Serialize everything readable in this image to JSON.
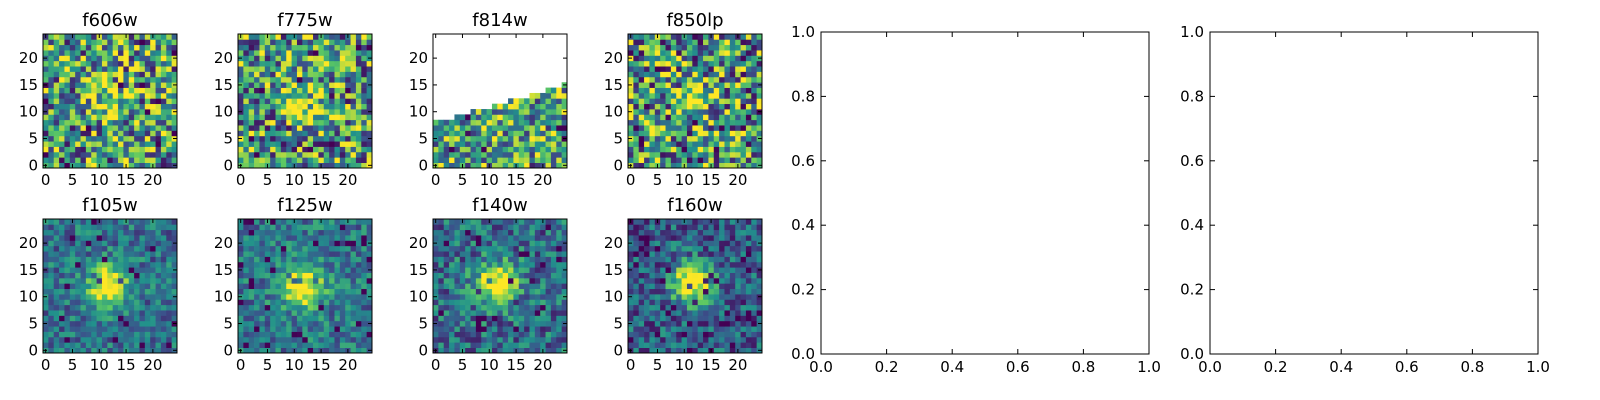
{
  "chart_data": [
    {
      "type": "heatmap",
      "title": "f606w",
      "xlim": [
        -0.5,
        24.5
      ],
      "ylim": [
        -0.5,
        24.5
      ],
      "xticks": [
        0,
        5,
        10,
        15,
        20
      ],
      "yticks": [
        0,
        5,
        10,
        15,
        20
      ],
      "source_peak": [
        12,
        12
      ],
      "peak_strength": 0.35,
      "noise": 0.5,
      "background": 0.55,
      "coverage": "full"
    },
    {
      "type": "heatmap",
      "title": "f775w",
      "xlim": [
        -0.5,
        24.5
      ],
      "ylim": [
        -0.5,
        24.5
      ],
      "xticks": [
        0,
        5,
        10,
        15,
        20
      ],
      "yticks": [
        0,
        5,
        10,
        15,
        20
      ],
      "source_peak": [
        12,
        12
      ],
      "peak_strength": 0.35,
      "noise": 0.5,
      "background": 0.55,
      "coverage": "full"
    },
    {
      "type": "heatmap",
      "title": "f814w",
      "xlim": [
        -0.5,
        24.5
      ],
      "ylim": [
        -0.5,
        24.5
      ],
      "xticks": [
        0,
        5,
        10,
        15,
        20
      ],
      "yticks": [
        0,
        5,
        10,
        15,
        20
      ],
      "source_peak": [
        12,
        12
      ],
      "peak_strength": 0.1,
      "noise": 0.45,
      "background": 0.6,
      "coverage": "partial",
      "coverage_edge": [
        8,
        15
      ]
    },
    {
      "type": "heatmap",
      "title": "f850lp",
      "xlim": [
        -0.5,
        24.5
      ],
      "ylim": [
        -0.5,
        24.5
      ],
      "xticks": [
        0,
        5,
        10,
        15,
        20
      ],
      "yticks": [
        0,
        5,
        10,
        15,
        20
      ],
      "source_peak": [
        12,
        12
      ],
      "peak_strength": 0.3,
      "noise": 0.55,
      "background": 0.55,
      "coverage": "full"
    },
    {
      "type": "heatmap",
      "title": "f105w",
      "xlim": [
        -0.5,
        24.5
      ],
      "ylim": [
        -0.5,
        24.5
      ],
      "xticks": [
        0,
        5,
        10,
        15,
        20
      ],
      "yticks": [
        0,
        5,
        10,
        15,
        20
      ],
      "source_peak": [
        11.5,
        12
      ],
      "peak_strength": 0.75,
      "noise": 0.22,
      "background": 0.38,
      "coverage": "full"
    },
    {
      "type": "heatmap",
      "title": "f125w",
      "xlim": [
        -0.5,
        24.5
      ],
      "ylim": [
        -0.5,
        24.5
      ],
      "xticks": [
        0,
        5,
        10,
        15,
        20
      ],
      "yticks": [
        0,
        5,
        10,
        15,
        20
      ],
      "source_peak": [
        11.5,
        12
      ],
      "peak_strength": 0.75,
      "noise": 0.22,
      "background": 0.4,
      "coverage": "full"
    },
    {
      "type": "heatmap",
      "title": "f140w",
      "xlim": [
        -0.5,
        24.5
      ],
      "ylim": [
        -0.5,
        24.5
      ],
      "xticks": [
        0,
        5,
        10,
        15,
        20
      ],
      "yticks": [
        0,
        5,
        10,
        15,
        20
      ],
      "source_peak": [
        11.5,
        12.5
      ],
      "peak_strength": 0.75,
      "noise": 0.26,
      "background": 0.36,
      "coverage": "full"
    },
    {
      "type": "heatmap",
      "title": "f160w",
      "xlim": [
        -0.5,
        24.5
      ],
      "ylim": [
        -0.5,
        24.5
      ],
      "xticks": [
        0,
        5,
        10,
        15,
        20
      ],
      "yticks": [
        0,
        5,
        10,
        15,
        20
      ],
      "source_peak": [
        11.5,
        12.5
      ],
      "peak_strength": 0.8,
      "noise": 0.25,
      "background": 0.3,
      "coverage": "full"
    },
    {
      "type": "line",
      "title": "",
      "xlim": [
        0.0,
        1.0
      ],
      "ylim": [
        0.0,
        1.0
      ],
      "xticks": [
        "0.0",
        "0.2",
        "0.4",
        "0.6",
        "0.8",
        "1.0"
      ],
      "yticks": [
        "0.0",
        "0.2",
        "0.4",
        "0.6",
        "0.8",
        "1.0"
      ],
      "series": []
    },
    {
      "type": "line",
      "title": "",
      "xlim": [
        0.0,
        1.0
      ],
      "ylim": [
        0.0,
        1.0
      ],
      "xticks": [
        "0.0",
        "0.2",
        "0.4",
        "0.6",
        "0.8",
        "1.0"
      ],
      "yticks": [
        "0.0",
        "0.2",
        "0.4",
        "0.6",
        "0.8",
        "1.0"
      ],
      "series": []
    }
  ],
  "colormap": "viridis",
  "colors": {
    "axis": "#000000",
    "background": "#ffffff"
  }
}
